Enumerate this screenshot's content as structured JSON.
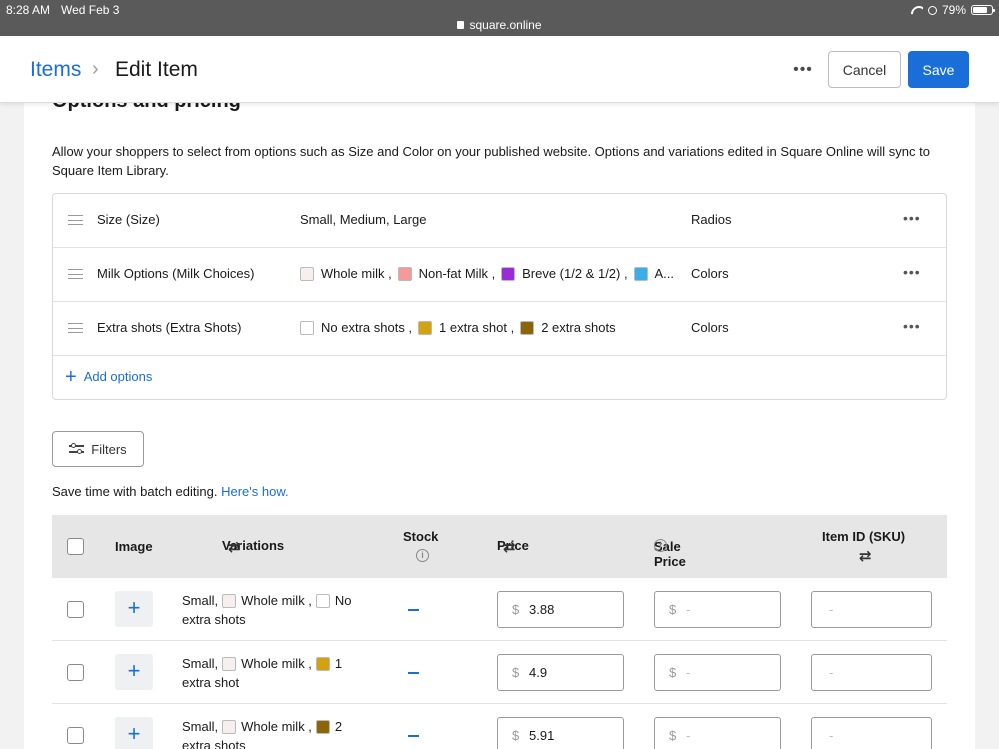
{
  "status_bar": {
    "time": "8:28 AM",
    "date": "Wed Feb 3",
    "url": "square.online",
    "battery": "79%",
    "battery_level": 0.79
  },
  "header": {
    "breadcrumb_parent": "Items",
    "breadcrumb_separator": "›",
    "title": "Edit Item",
    "more_label": "•••",
    "cancel_label": "Cancel",
    "save_label": "Save"
  },
  "section": {
    "title": "Options and pricing",
    "intro": "Allow your shoppers to select from options such as Size and Color on your published website. Options and variations edited in Square Online will sync to Square Item Library."
  },
  "options": [
    {
      "name": "Size (Size)",
      "values_text": "Small, Medium, Large",
      "type": "Radios",
      "swatches": []
    },
    {
      "name": "Milk Options (Milk Choices)",
      "type": "Colors",
      "swatches": [
        {
          "label": "Whole milk ,",
          "color": "#f7eeee"
        },
        {
          "label": "Non-fat Milk ,",
          "color": "#f49a9a"
        },
        {
          "label": "Breve (1/2 & 1/2) ,",
          "color": "#9b2bd6"
        },
        {
          "label": "A...",
          "color": "#3aaee8"
        }
      ]
    },
    {
      "name": "Extra shots (Extra Shots)",
      "type": "Colors",
      "swatches": [
        {
          "label": "No extra shots ,",
          "color": "#ffffff"
        },
        {
          "label": "1 extra shot ,",
          "color": "#d4a20f"
        },
        {
          "label": "2 extra shots",
          "color": "#8b6508"
        }
      ]
    }
  ],
  "add_options_label": "Add options",
  "filters_label": "Filters",
  "batch": {
    "text": "Save time with batch editing.",
    "link": "Here's how."
  },
  "table": {
    "headers": {
      "image": "Image",
      "variations": "Variations",
      "stock": "Stock",
      "price": "Price",
      "sale_price": "Sale Price",
      "sku": "Item ID (SKU)"
    },
    "currency": "$",
    "placeholder": "-",
    "rows": [
      {
        "size": "Small,",
        "milk": "Whole milk ,",
        "milk_color": "#f7eeee",
        "shot_num": "No",
        "shot_rest": "extra shots",
        "shot_color": "#ffffff",
        "price": "3.88"
      },
      {
        "size": "Small,",
        "milk": "Whole milk ,",
        "milk_color": "#f7eeee",
        "shot_num": "1",
        "shot_rest": "extra shot",
        "shot_color": "#d4a20f",
        "price": "4.9"
      },
      {
        "size": "Small,",
        "milk": "Whole milk ,",
        "milk_color": "#f7eeee",
        "shot_num": "2",
        "shot_rest": "extra shots",
        "shot_color": "#8b6508",
        "price": "5.91"
      }
    ]
  },
  "colors": {
    "accent": "#1a6ed8"
  }
}
